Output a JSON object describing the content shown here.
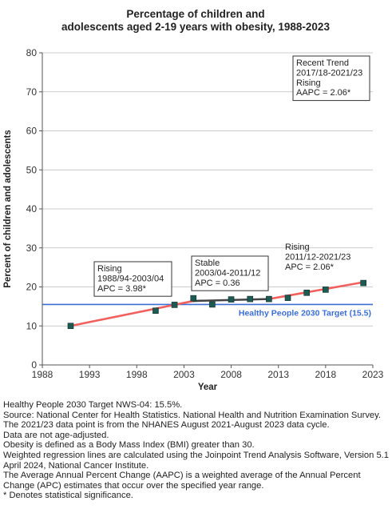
{
  "chart_data": {
    "type": "line",
    "title_lines": [
      "Percentage of children and",
      "adolescents aged 2-19 years with obesity, 1988-2023"
    ],
    "xlabel": "Year",
    "ylabel": "Percent of children and adolescents",
    "xlim": [
      1988,
      2023
    ],
    "ylim": [
      0,
      80
    ],
    "x_ticks": [
      1988,
      1993,
      1998,
      2003,
      2008,
      2013,
      2018,
      2023
    ],
    "y_ticks": [
      0,
      10,
      20,
      30,
      40,
      50,
      60,
      70,
      80
    ],
    "grid": true,
    "series": [
      {
        "kind": "observed",
        "marker": "square",
        "points": [
          {
            "x": 1991,
            "y": 10.0
          },
          {
            "x": 2000,
            "y": 13.9
          },
          {
            "x": 2002,
            "y": 15.4
          },
          {
            "x": 2004,
            "y": 17.1
          },
          {
            "x": 2006,
            "y": 15.5
          },
          {
            "x": 2008,
            "y": 16.8
          },
          {
            "x": 2010,
            "y": 16.9
          },
          {
            "x": 2012,
            "y": 16.9
          },
          {
            "x": 2014,
            "y": 17.2
          },
          {
            "x": 2016,
            "y": 18.5
          },
          {
            "x": 2018,
            "y": 19.3
          },
          {
            "x": 2022,
            "y": 21.0
          }
        ]
      }
    ],
    "trend_segments": [
      {
        "x1": 1991,
        "y1": 10.0,
        "x2": 2004,
        "y2": 16.4,
        "color": "#f0605d"
      },
      {
        "x1": 2004,
        "y1": 16.4,
        "x2": 2012,
        "y2": 16.9,
        "color": "#444444"
      },
      {
        "x1": 2012,
        "y1": 16.9,
        "x2": 2022,
        "y2": 21.2,
        "color": "#f0605d"
      }
    ],
    "target_line": {
      "y": 15.5,
      "label": "Healthy People 2030 Target (15.5)",
      "color": "#3b6fd4"
    },
    "annotations": [
      {
        "lines": [
          "Rising",
          "1988/94-2003/04",
          "APC =  3.98*"
        ],
        "boxed": true
      },
      {
        "lines": [
          "Stable",
          "2003/04-2011/12",
          "APC =  0.36"
        ],
        "boxed": true
      },
      {
        "lines": [
          "Rising",
          "2011/12-2021/23",
          "APC =  2.06*"
        ],
        "boxed": false
      },
      {
        "lines": [
          "Recent Trend",
          "2017/18-2021/23",
          "Rising",
          "AAPC =  2.06*"
        ],
        "boxed": true
      }
    ],
    "colors": {
      "marker": "#1d5a52",
      "grid": "#bbbbbb",
      "axis": "#555555"
    }
  },
  "footnotes": [
    "Healthy People 2030 Target NWS-04: 15.5%.",
    "Source: National Center for Health Statistics. National Health and Nutrition Examination Survey.",
    "The 2021/23 data point is from the NHANES August 2021-August 2023 data cycle.",
    "Data are not age-adjusted.",
    "Obesity is defined as a Body Mass Index (BMI) greater than 30.",
    "Weighted regression lines are calculated using the Joinpoint Trend Analysis Software, Version 5.1 April 2024, National Cancer Institute.",
    "The Average Annual Percent Change (AAPC) is a weighted average of the Annual Percent Change (APC) estimates that occur over the specified year range.",
    "* Denotes statistical significance."
  ]
}
